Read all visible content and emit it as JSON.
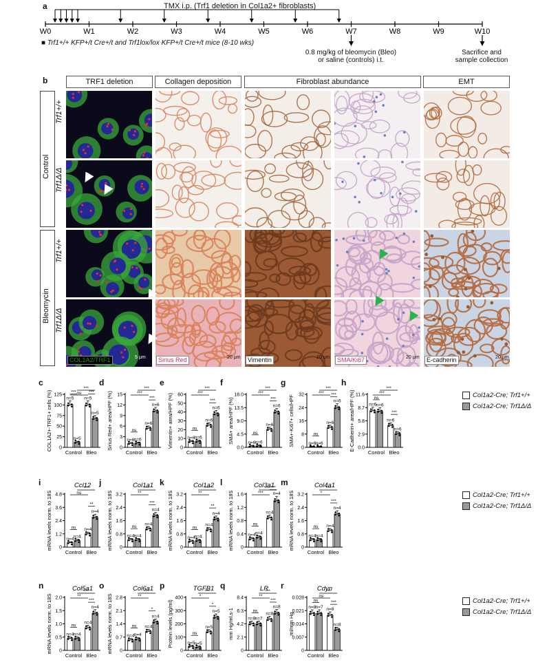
{
  "panel_a": {
    "letter": "a",
    "tmx_label": "TMX i.p. (Trf1 deletion in Col1a2+ fibroblasts)",
    "weeks": [
      "W0",
      "W1",
      "W2",
      "W3",
      "W4",
      "W5",
      "W6",
      "W7",
      "W8",
      "W9",
      "W10"
    ],
    "mice_note": "Trf1+/+ KFP+/t Cre+/t and Trf1lox/lox KFP+/t Cre+/t mice (8-10 wks)",
    "bleo_note_1": "0.8 mg/kg of bleomycin (Bleo)",
    "bleo_note_2": "or saline (controls) i.t.",
    "sac_note_1": "Sacrifice and",
    "sac_note_2": "sample collection"
  },
  "panel_b": {
    "letter": "b",
    "headers": [
      "TRF1 deletion",
      "Collagen deposition",
      "Fibroblast abundance",
      "EMT"
    ],
    "groups": [
      "Control",
      "Bleomycin"
    ],
    "genotypes": [
      "Trf1+/+",
      "Trf1Δ/Δ",
      "Trf1+/+",
      "Trf1Δ/Δ"
    ],
    "stain_labels": [
      "COL1A2/TRF1",
      "Sirius Red",
      "Vimentin",
      "SMA/Ki67",
      "E-cadherin"
    ],
    "scale_labels": [
      "5 μm",
      "20 μm",
      "20 μm",
      "20 μm",
      "20 μm"
    ]
  },
  "legend": {
    "wt": "Col1a2-Cre; Trf1+/+",
    "ko": "Col1a2-Cre; Trf1Δ/Δ",
    "wt_color": "#ffffff",
    "ko_color": "#9a9a9a"
  },
  "chart_data": [
    {
      "letter": "c",
      "type": "bar",
      "title": "",
      "ylabel": "COL1A2+-TRF1+ cells (%)",
      "categories": [
        "Control",
        "Bleo"
      ],
      "ylim": [
        0,
        125
      ],
      "yticks": [
        "0",
        "25",
        "50",
        "75",
        "100",
        "125"
      ],
      "series": [
        {
          "name": "Col1a2-Cre; Trf1+/+",
          "values": [
            100,
            100
          ],
          "n": [
            "n=5",
            "n=5"
          ]
        },
        {
          "name": "Col1a2-Cre; Trf1Δ/Δ",
          "values": [
            12,
            68
          ],
          "n": [
            "n=5",
            "n=5"
          ]
        }
      ],
      "sig": [
        "***",
        "***",
        "ns",
        "***"
      ]
    },
    {
      "letter": "d",
      "type": "bar",
      "title": "",
      "ylabel": "Sirius Red+ area/HPF (%)",
      "categories": [
        "Control",
        "Bleo"
      ],
      "ylim": [
        0,
        15
      ],
      "yticks": [
        "0",
        "3",
        "6",
        "9",
        "12",
        "15"
      ],
      "series": [
        {
          "name": "Col1a2-Cre; Trf1+/+",
          "values": [
            1.1,
            5.4
          ],
          "n": [
            "n=6",
            "n=6"
          ]
        },
        {
          "name": "Col1a2-Cre; Trf1Δ/Δ",
          "values": [
            1.2,
            10.3
          ],
          "n": [
            "n=6",
            "n=6"
          ]
        }
      ],
      "sig": [
        "ns",
        "***",
        "***",
        "***"
      ]
    },
    {
      "letter": "e",
      "type": "bar",
      "title": "",
      "ylabel": "Vimentin+ area/HPF (%)",
      "categories": [
        "Control",
        "Bleo"
      ],
      "ylim": [
        0,
        60
      ],
      "yticks": [
        "0",
        "10",
        "20",
        "30",
        "40",
        "50",
        "60"
      ],
      "series": [
        {
          "name": "Col1a2-Cre; Trf1+/+",
          "values": [
            6.5,
            25
          ],
          "n": [
            "n=6",
            "n=6"
          ]
        },
        {
          "name": "Col1a2-Cre; Trf1Δ/Δ",
          "values": [
            6.8,
            38
          ],
          "n": [
            "n=6",
            "n=6"
          ]
        }
      ],
      "sig": [
        "ns",
        "***",
        "***",
        "***"
      ]
    },
    {
      "letter": "f",
      "type": "bar",
      "title": "",
      "ylabel": "SMA+ area/HPF (%)",
      "categories": [
        "Control",
        "Bleo"
      ],
      "ylim": [
        0,
        18
      ],
      "yticks": [
        "0.0",
        "4.5",
        "9.0",
        "13.5",
        "18.0"
      ],
      "series": [
        {
          "name": "Col1a2-Cre; Trf1+/+",
          "values": [
            0.4,
            6.1
          ],
          "n": [
            "n=6",
            "n=6"
          ]
        },
        {
          "name": "Col1a2-Cre; Trf1Δ/Δ",
          "values": [
            0.5,
            12
          ],
          "n": [
            "n=6",
            "n=6"
          ]
        }
      ],
      "sig": [
        "ns",
        "***",
        "***",
        "***"
      ]
    },
    {
      "letter": "g",
      "type": "bar",
      "title": "",
      "ylabel": "SMA+-Ki67+ cells/HPF",
      "categories": [
        "Control",
        "Bleo"
      ],
      "ylim": [
        0,
        32
      ],
      "yticks": [
        "0",
        "8",
        "16",
        "24",
        "32"
      ],
      "series": [
        {
          "name": "Col1a2-Cre; Trf1+/+",
          "values": [
            0.3,
            12
          ],
          "n": [
            "n=6",
            "n=6"
          ]
        },
        {
          "name": "Col1a2-Cre; Trf1Δ/Δ",
          "values": [
            0.3,
            24
          ],
          "n": [
            "n=6",
            "n=6"
          ]
        }
      ],
      "sig": [
        "ns",
        "***",
        "***",
        "***"
      ]
    },
    {
      "letter": "h",
      "type": "bar",
      "title": "",
      "ylabel": "E-Cadherin+ area/HPF (%)",
      "categories": [
        "Control",
        "Bleo"
      ],
      "ylim": [
        0,
        11.6
      ],
      "yticks": [
        "0.0",
        "2.9",
        "5.8",
        "8.7",
        "11.6"
      ],
      "series": [
        {
          "name": "Col1a2-Cre; Trf1+/+",
          "values": [
            8.0,
            4.8
          ],
          "n": [
            "n=6",
            "n=6"
          ]
        },
        {
          "name": "Col1a2-Cre; Trf1Δ/Δ",
          "values": [
            7.9,
            3.0
          ],
          "n": [
            "n=6",
            "n=6"
          ]
        }
      ],
      "sig": [
        "ns",
        "***",
        "***",
        "***"
      ]
    },
    {
      "letter": "i",
      "type": "bar",
      "title": "Ccl12",
      "ylabel": "mRNA levels norm. to 18S",
      "categories": [
        "Control",
        "Bleo"
      ],
      "ylim": [
        0,
        4.8
      ],
      "yticks": [
        "0",
        "1.2",
        "2.4",
        "3.6",
        "4.8"
      ],
      "series": [
        {
          "name": "Col1a2-Cre; Trf1+/+",
          "values": [
            0.4,
            1.2
          ],
          "n": [
            "n=4",
            "n=4"
          ]
        },
        {
          "name": "Col1a2-Cre; Trf1Δ/Δ",
          "values": [
            0.6,
            2.7
          ],
          "n": [
            "n=4",
            "n=4"
          ]
        }
      ],
      "sig": [
        "ns",
        "**",
        "ns",
        "***"
      ]
    },
    {
      "letter": "j",
      "type": "bar",
      "title": "Col1a1",
      "ylabel": "mRNA levels norm. to 18S",
      "categories": [
        "Control",
        "Bleo"
      ],
      "ylim": [
        0,
        3.2
      ],
      "yticks": [
        "0",
        "0.8",
        "1.6",
        "2.4",
        "3.2"
      ],
      "series": [
        {
          "name": "Col1a2-Cre; Trf1+/+",
          "values": [
            0.45,
            1.1
          ],
          "n": [
            "n=4",
            "n=4"
          ]
        },
        {
          "name": "Col1a2-Cre; Trf1Δ/Δ",
          "values": [
            0.45,
            1.9
          ],
          "n": [
            "n=4",
            "n=4"
          ]
        }
      ],
      "sig": [
        "ns",
        "***",
        "**",
        "***"
      ]
    },
    {
      "letter": "k",
      "type": "bar",
      "title": "Col1a2",
      "ylabel": "mRNA levels norm. to 18S",
      "categories": [
        "Control",
        "Bleo"
      ],
      "ylim": [
        0,
        3.2
      ],
      "yticks": [
        "0",
        "0.8",
        "1.6",
        "2.4",
        "3.2"
      ],
      "series": [
        {
          "name": "Col1a2-Cre; Trf1+/+",
          "values": [
            0.35,
            1.05
          ],
          "n": [
            "n=4",
            "n=4"
          ]
        },
        {
          "name": "Col1a2-Cre; Trf1Δ/Δ",
          "values": [
            0.4,
            1.7
          ],
          "n": [
            "n=4",
            "n=4"
          ]
        }
      ],
      "sig": [
        "ns",
        "**",
        "**",
        "***"
      ]
    },
    {
      "letter": "l",
      "type": "bar",
      "title": "Col3a1",
      "ylabel": "mRNA levels norm. to 18S",
      "categories": [
        "Control",
        "Bleo"
      ],
      "ylim": [
        0,
        1.6
      ],
      "yticks": [
        "0",
        "0.4",
        "0.8",
        "1.2",
        "1.6"
      ],
      "series": [
        {
          "name": "Col1a2-Cre; Trf1+/+",
          "values": [
            0.25,
            0.88
          ],
          "n": [
            "n=4",
            "n=4"
          ]
        },
        {
          "name": "Col1a2-Cre; Trf1Δ/Δ",
          "values": [
            0.3,
            1.4
          ],
          "n": [
            "n=4",
            "n=4"
          ]
        }
      ],
      "sig": [
        "ns",
        "***",
        "***",
        "***"
      ]
    },
    {
      "letter": "m",
      "type": "bar",
      "title": "Col4a1",
      "ylabel": "mRNA levels norm. to 18S",
      "categories": [
        "Control",
        "Bleo"
      ],
      "ylim": [
        0,
        3.2
      ],
      "yticks": [
        "0",
        "0.8",
        "1.6",
        "2.4",
        "3.2"
      ],
      "series": [
        {
          "name": "Col1a2-Cre; Trf1+/+",
          "values": [
            0.45,
            1.0
          ],
          "n": [
            "n=4",
            "n=4"
          ]
        },
        {
          "name": "Col1a2-Cre; Trf1Δ/Δ",
          "values": [
            0.45,
            2.0
          ],
          "n": [
            "n=4",
            "n=4"
          ]
        }
      ],
      "sig": [
        "ns",
        "***",
        "*",
        "***"
      ]
    },
    {
      "letter": "n",
      "type": "bar",
      "title": "Col5a1",
      "ylabel": "mRNA levels norm. to 18S",
      "categories": [
        "Control",
        "Bleo"
      ],
      "ylim": [
        0,
        2
      ],
      "yticks": [
        "0",
        "0.5",
        "1.0",
        "1.5",
        "2.0"
      ],
      "series": [
        {
          "name": "Col1a2-Cre; Trf1+/+",
          "values": [
            0.45,
            0.85
          ],
          "n": [
            "n=4",
            "n=4"
          ]
        },
        {
          "name": "Col1a2-Cre; Trf1Δ/Δ",
          "values": [
            0.45,
            1.4
          ],
          "n": [
            "n=4",
            "n=4"
          ]
        }
      ],
      "sig": [
        "ns",
        "***",
        "**",
        "***"
      ]
    },
    {
      "letter": "o",
      "type": "bar",
      "title": "Col6a1",
      "ylabel": "mRNA levels norm. to 18S",
      "categories": [
        "Control",
        "Bleo"
      ],
      "ylim": [
        0,
        2.8
      ],
      "yticks": [
        "0",
        "0.7",
        "1.4",
        "2.1",
        "2.8"
      ],
      "series": [
        {
          "name": "Col1a2-Cre; Trf1+/+",
          "values": [
            0.55,
            1.0
          ],
          "n": [
            "n=4",
            "n=4"
          ]
        },
        {
          "name": "Col1a2-Cre; Trf1Δ/Δ",
          "values": [
            0.6,
            1.5
          ],
          "n": [
            "n=4",
            "n=4"
          ]
        }
      ],
      "sig": [
        "ns",
        "*",
        "**",
        "***"
      ]
    },
    {
      "letter": "p",
      "type": "bar",
      "title": "TGFB1",
      "ylabel": "Protein levels (pg/ml)",
      "categories": [
        "Control",
        "Bleo"
      ],
      "ylim": [
        0,
        400
      ],
      "yticks": [
        "0",
        "100",
        "200",
        "300",
        "400"
      ],
      "series": [
        {
          "name": "Col1a2-Cre; Trf1+/+",
          "values": [
            30,
            140
          ],
          "n": [
            "n=5",
            "n=5"
          ]
        },
        {
          "name": "Col1a2-Cre; Trf1Δ/Δ",
          "values": [
            25,
            250
          ],
          "n": [
            "n=5",
            "n=5"
          ]
        }
      ],
      "sig": [
        "ns",
        "*",
        "*",
        "***"
      ]
    },
    {
      "letter": "q",
      "type": "bar",
      "title": "LR",
      "ylabel": "mm Hg/ml.s-1",
      "categories": [
        "Control",
        "Bleo"
      ],
      "ylim": [
        0,
        8.4
      ],
      "yticks": [
        "0",
        "2.1",
        "4.2",
        "6.3",
        "8.4"
      ],
      "series": [
        {
          "name": "Col1a2-Cre; Trf1+/+",
          "values": [
            4.2,
            4.9
          ],
          "n": [
            "n=8",
            "n=8"
          ]
        },
        {
          "name": "Col1a2-Cre; Trf1Δ/Δ",
          "values": [
            4.2,
            5.9
          ],
          "n": [
            "n=7",
            "n=8"
          ]
        }
      ],
      "sig": [
        "ns",
        "***",
        "**",
        "***"
      ]
    },
    {
      "letter": "r",
      "type": "bar",
      "title": "Cdyn",
      "ylabel": "ml/mm Hg",
      "categories": [
        "Control",
        "Bleo"
      ],
      "ylim": [
        0,
        0.028
      ],
      "yticks": [
        "0",
        "0.007",
        "0.014",
        "0.021",
        "0.028"
      ],
      "series": [
        {
          "name": "Col1a2-Cre; Trf1+/+",
          "values": [
            0.0195,
            0.0185
          ],
          "n": [
            "n=8",
            "n=8"
          ]
        },
        {
          "name": "Col1a2-Cre; Trf1Δ/Δ",
          "values": [
            0.0195,
            0.011
          ],
          "n": [
            "n=7",
            "n=8"
          ]
        }
      ],
      "sig": [
        "ns",
        "***",
        "ns",
        "***"
      ]
    }
  ]
}
